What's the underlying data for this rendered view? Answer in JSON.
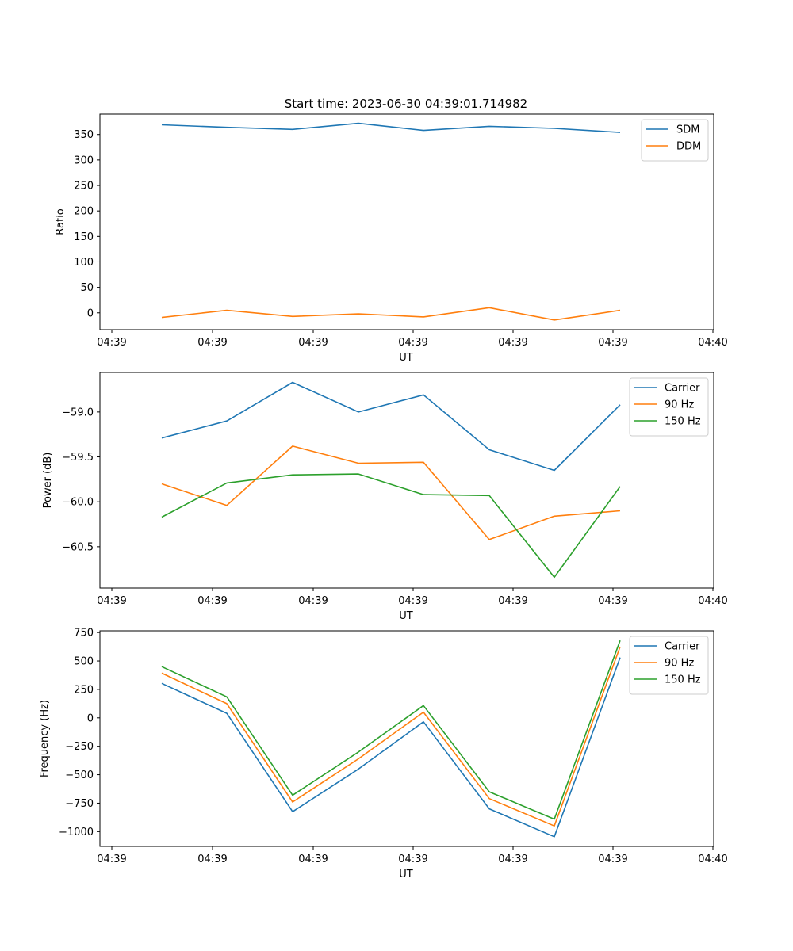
{
  "figure": {
    "title": "Start time: 2023-06-30 04:39:01.714982"
  },
  "chart_data": [
    {
      "type": "line",
      "xlabel": "UT",
      "ylabel": "Ratio",
      "xticks": [
        "04:39",
        "04:39",
        "04:39",
        "04:39",
        "04:39",
        "04:39",
        "04:40"
      ],
      "yticks": [
        0,
        50,
        100,
        150,
        200,
        250,
        300,
        350
      ],
      "ylim": [
        -33,
        390
      ],
      "grid": false,
      "legend_position": "top-right",
      "series": [
        {
          "name": "SDM",
          "color": "#1f77b4",
          "values": [
            369,
            364,
            360,
            372,
            358,
            366,
            362,
            354
          ]
        },
        {
          "name": "DDM",
          "color": "#ff7f0e",
          "values": [
            -9,
            5,
            -7,
            -2,
            -8,
            10,
            -14,
            5
          ]
        }
      ]
    },
    {
      "type": "line",
      "xlabel": "UT",
      "ylabel": "Power (dB)",
      "xticks": [
        "04:39",
        "04:39",
        "04:39",
        "04:39",
        "04:39",
        "04:39",
        "04:40"
      ],
      "yticks": [
        -59.0,
        -59.5,
        -60.0,
        -60.5
      ],
      "ytick_labels": [
        "−59.0",
        "−59.5",
        "−60.0",
        "−60.5"
      ],
      "ylim": [
        -60.96,
        -58.56
      ],
      "grid": false,
      "legend_position": "top-right",
      "series": [
        {
          "name": "Carrier",
          "color": "#1f77b4",
          "values": [
            -59.29,
            -59.1,
            -58.67,
            -59.0,
            -58.81,
            -59.42,
            -59.65,
            -58.92
          ]
        },
        {
          "name": "90 Hz",
          "color": "#ff7f0e",
          "values": [
            -59.8,
            -60.04,
            -59.38,
            -59.57,
            -59.56,
            -60.42,
            -60.16,
            -60.1
          ]
        },
        {
          "name": "150 Hz",
          "color": "#2ca02c",
          "values": [
            -60.17,
            -59.79,
            -59.7,
            -59.69,
            -59.92,
            -59.93,
            -60.84,
            -59.83
          ]
        }
      ]
    },
    {
      "type": "line",
      "xlabel": "UT",
      "ylabel": "Frequency (Hz)",
      "xticks": [
        "04:39",
        "04:39",
        "04:39",
        "04:39",
        "04:39",
        "04:39",
        "04:40"
      ],
      "yticks": [
        750,
        500,
        250,
        0,
        -250,
        -500,
        -750,
        -1000
      ],
      "ytick_labels": [
        "750",
        "500",
        "250",
        "0",
        "−250",
        "−500",
        "−750",
        "−1000"
      ],
      "ylim": [
        -1130,
        765
      ],
      "grid": false,
      "legend_position": "top-right",
      "series": [
        {
          "name": "Carrier",
          "color": "#1f77b4",
          "values": [
            303,
            40,
            -825,
            -450,
            -35,
            -800,
            -1045,
            530
          ]
        },
        {
          "name": "90 Hz",
          "color": "#ff7f0e",
          "values": [
            393,
            125,
            -740,
            -360,
            50,
            -710,
            -950,
            625
          ]
        },
        {
          "name": "150 Hz",
          "color": "#2ca02c",
          "values": [
            450,
            185,
            -680,
            -300,
            108,
            -650,
            -890,
            680
          ]
        }
      ]
    }
  ]
}
